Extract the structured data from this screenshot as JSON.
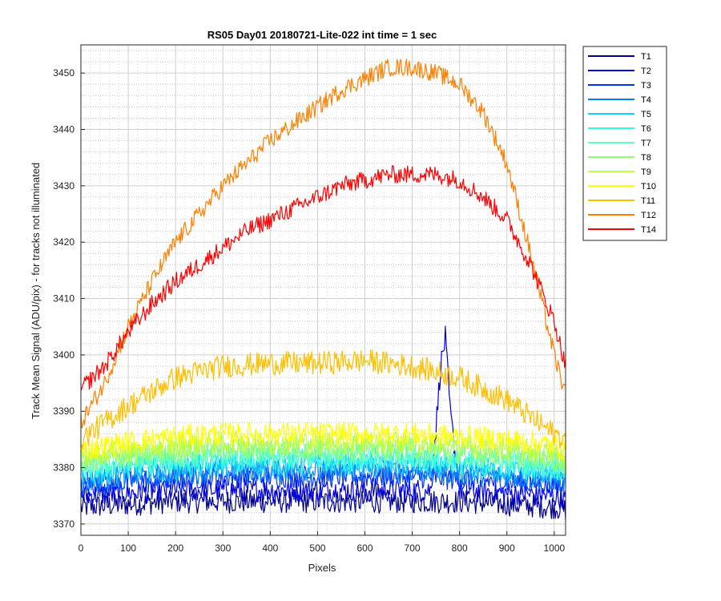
{
  "chart_data": {
    "type": "line",
    "title": "RS05 Day01 20180721-Lite-022 int time = 1 sec",
    "xlabel": "Pixels",
    "ylabel": "Track Mean Signal (ADU/pix) - for tracks not illuminated",
    "xlim": [
      0,
      1024
    ],
    "ylim": [
      3368,
      3455
    ],
    "xticks": [
      0,
      100,
      200,
      300,
      400,
      500,
      600,
      700,
      800,
      900,
      1000
    ],
    "yticks": [
      3370,
      3380,
      3390,
      3400,
      3410,
      3420,
      3430,
      3440,
      3450
    ],
    "grid": true,
    "minor_grid": true,
    "legend_position": "outside-top-right",
    "series": [
      {
        "name": "T1",
        "color": "#00008f",
        "x": [
          0,
          100,
          200,
          300,
          400,
          500,
          600,
          700,
          800,
          900,
          1000,
          1024
        ],
        "y": [
          3373,
          3373.5,
          3374,
          3374,
          3374,
          3374,
          3374,
          3374,
          3374,
          3373.5,
          3373,
          3372.5
        ]
      },
      {
        "name": "T2",
        "color": "#0000df",
        "x": [
          0,
          100,
          200,
          300,
          400,
          500,
          600,
          700,
          740,
          760,
          770,
          780,
          800,
          900,
          1000,
          1024
        ],
        "y": [
          3375,
          3375.5,
          3376,
          3376,
          3376,
          3376,
          3376,
          3376,
          3376,
          3398,
          3403,
          3390,
          3376,
          3375.5,
          3375,
          3374.5
        ]
      },
      {
        "name": "T3",
        "color": "#0030ff",
        "x": [
          0,
          100,
          200,
          300,
          400,
          500,
          600,
          700,
          800,
          900,
          1000,
          1024
        ],
        "y": [
          3376.5,
          3377.5,
          3378,
          3378.5,
          3378.5,
          3378.5,
          3378.5,
          3378.5,
          3378,
          3377.5,
          3377,
          3376.5
        ]
      },
      {
        "name": "T4",
        "color": "#0080ff",
        "x": [
          0,
          100,
          200,
          300,
          400,
          500,
          600,
          700,
          800,
          900,
          1000,
          1024
        ],
        "y": [
          3377.5,
          3378.5,
          3379,
          3379.5,
          3379.5,
          3379.5,
          3379.5,
          3379.5,
          3379,
          3378.5,
          3378,
          3377.5
        ]
      },
      {
        "name": "T5",
        "color": "#10cfff",
        "x": [
          0,
          100,
          200,
          300,
          400,
          500,
          600,
          700,
          800,
          900,
          1000,
          1024
        ],
        "y": [
          3378.5,
          3379.5,
          3380,
          3380.5,
          3380.5,
          3380.5,
          3380.5,
          3380.5,
          3380,
          3379.5,
          3379,
          3378.5
        ]
      },
      {
        "name": "T6",
        "color": "#30ffe0",
        "x": [
          0,
          100,
          200,
          300,
          400,
          500,
          600,
          700,
          800,
          900,
          1000,
          1024
        ],
        "y": [
          3379.5,
          3380.5,
          3381,
          3381.5,
          3381.5,
          3381.5,
          3381.5,
          3381.5,
          3381,
          3380.5,
          3380,
          3379.5
        ]
      },
      {
        "name": "T7",
        "color": "#60ffc0",
        "x": [
          0,
          100,
          200,
          300,
          400,
          500,
          600,
          700,
          800,
          900,
          1000,
          1024
        ],
        "y": [
          3380.5,
          3381.5,
          3382,
          3382.5,
          3382.5,
          3382.5,
          3382.5,
          3382.5,
          3382,
          3381.5,
          3381,
          3380.5
        ]
      },
      {
        "name": "T8",
        "color": "#90ff70",
        "x": [
          0,
          100,
          200,
          300,
          400,
          500,
          600,
          700,
          800,
          900,
          1000,
          1024
        ],
        "y": [
          3381,
          3382,
          3383,
          3383.5,
          3383.5,
          3383.5,
          3383.5,
          3383.5,
          3383,
          3382.5,
          3381.5,
          3381
        ]
      },
      {
        "name": "T9",
        "color": "#c0ff40",
        "x": [
          0,
          100,
          200,
          300,
          400,
          500,
          600,
          700,
          800,
          900,
          1000,
          1024
        ],
        "y": [
          3382,
          3383,
          3384,
          3384.5,
          3384.5,
          3384.5,
          3384.5,
          3384.5,
          3384,
          3383.5,
          3382.5,
          3382
        ]
      },
      {
        "name": "T10",
        "color": "#ffff00",
        "x": [
          0,
          100,
          200,
          300,
          400,
          500,
          600,
          700,
          800,
          900,
          1000,
          1024
        ],
        "y": [
          3383,
          3384.5,
          3385.5,
          3386,
          3386,
          3386,
          3386,
          3386,
          3385.5,
          3385,
          3384,
          3383
        ]
      },
      {
        "name": "T11",
        "color": "#ffbf00",
        "x": [
          0,
          50,
          100,
          200,
          300,
          400,
          500,
          600,
          700,
          800,
          900,
          1000,
          1024
        ],
        "y": [
          3385,
          3388,
          3391,
          3396,
          3398,
          3398.5,
          3398.5,
          3399,
          3398,
          3396,
          3392,
          3386,
          3385
        ]
      },
      {
        "name": "T12",
        "color": "#ff8000",
        "x": [
          0,
          50,
          100,
          150,
          200,
          250,
          300,
          350,
          400,
          450,
          500,
          550,
          600,
          650,
          700,
          750,
          800,
          850,
          900,
          950,
          1000,
          1024
        ],
        "y": [
          3388,
          3395,
          3405,
          3413,
          3420,
          3425,
          3430,
          3434,
          3438,
          3441,
          3444,
          3447,
          3449,
          3451,
          3451,
          3450,
          3448,
          3443,
          3434,
          3418,
          3400,
          3393
        ]
      },
      {
        "name": "T14",
        "color": "#ff0000",
        "x": [
          0,
          50,
          100,
          150,
          200,
          250,
          300,
          350,
          400,
          450,
          500,
          550,
          600,
          650,
          700,
          750,
          800,
          850,
          900,
          950,
          1000,
          1024
        ],
        "y": [
          3394,
          3398,
          3404,
          3409,
          3413,
          3416,
          3419,
          3422,
          3424,
          3426,
          3428,
          3430,
          3431,
          3432,
          3432,
          3432,
          3431,
          3428,
          3424,
          3416,
          3406,
          3398
        ]
      }
    ]
  }
}
